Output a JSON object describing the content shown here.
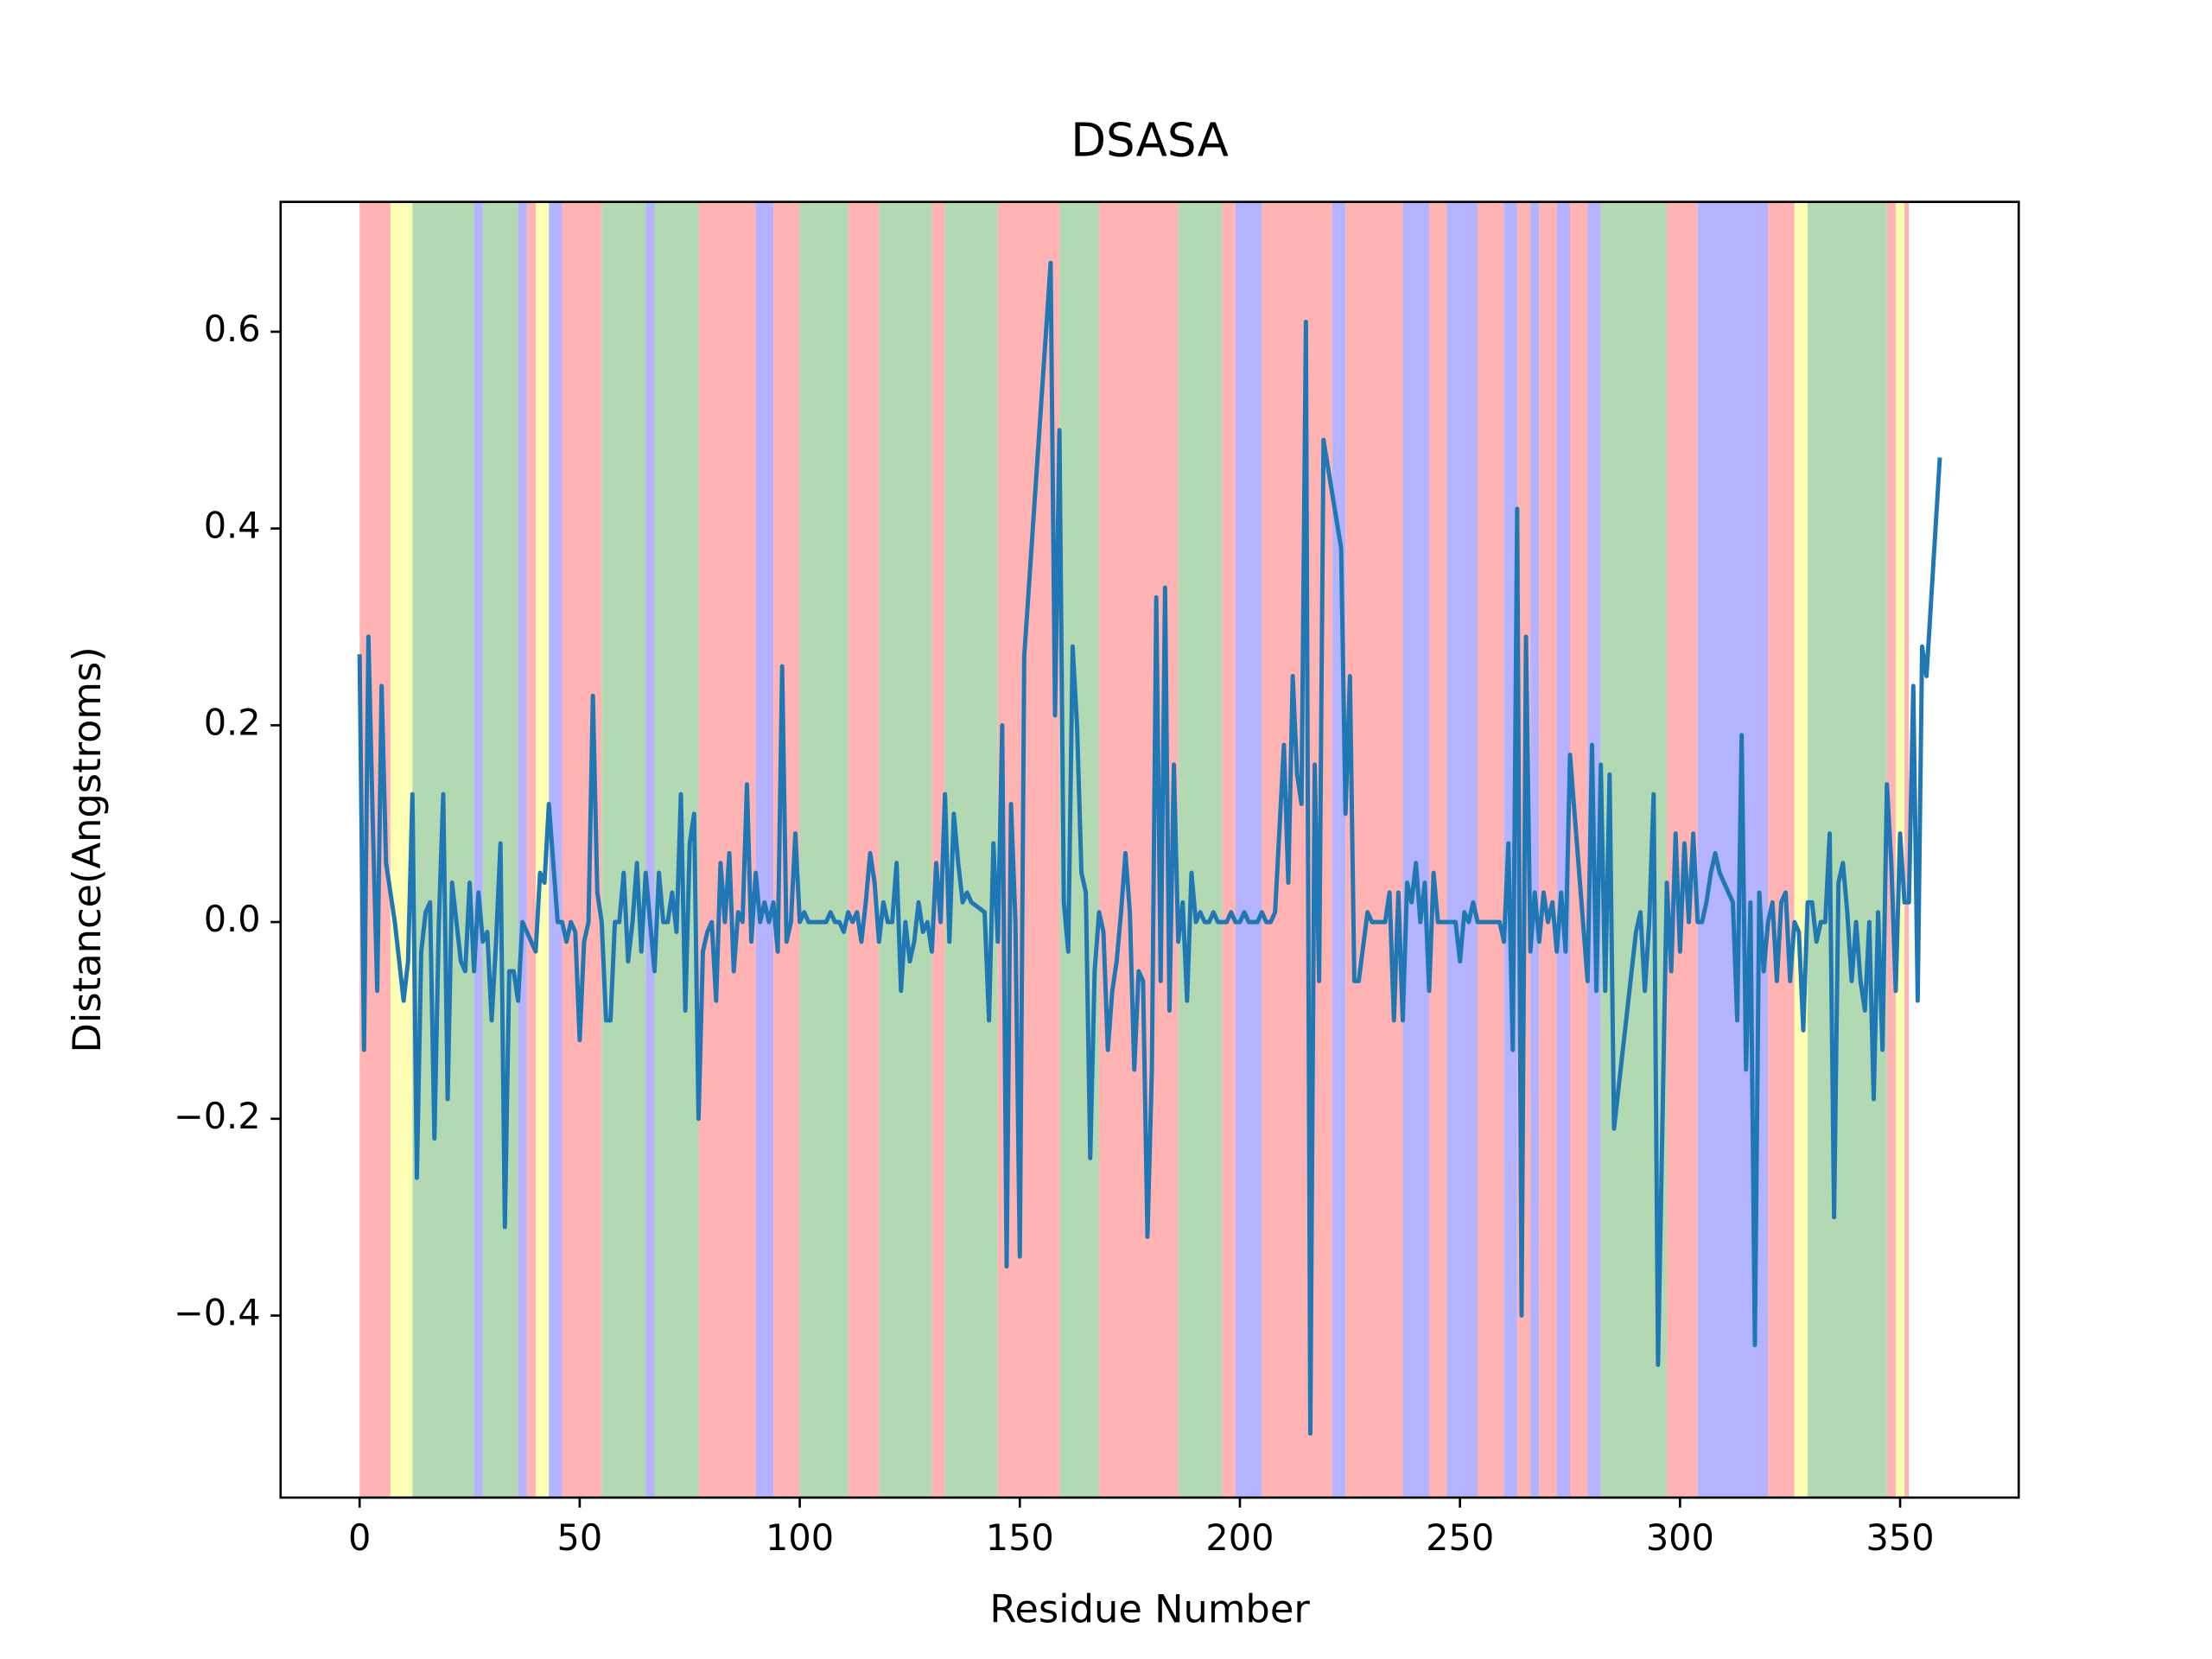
{
  "chart_data": {
    "type": "line",
    "title": "DSASA",
    "xlabel": "Residue Number",
    "ylabel": "Distance(Angstroms)",
    "color": "#1f77b4",
    "xlim": [
      -17.95,
      376.95
    ],
    "xticks": [
      0,
      50,
      100,
      150,
      200,
      250,
      300,
      350
    ],
    "ylim": [
      -0.585,
      0.732
    ],
    "yticks": [
      {
        "value": -0.4,
        "label": "−0.4"
      },
      {
        "value": -0.2,
        "label": "−0.2"
      },
      {
        "value": 0,
        "label": "0.0"
      },
      0.2,
      0.4,
      0.6
    ],
    "spans": [
      {
        "x": [
          0,
          7
        ],
        "color": "#ffb3b3"
      },
      {
        "x": [
          7,
          12
        ],
        "color": "#ffffb3"
      },
      {
        "x": [
          12,
          26
        ],
        "color": "#b3d9b3"
      },
      {
        "x": [
          26,
          28
        ],
        "color": "#b3b3ff"
      },
      {
        "x": [
          28,
          36
        ],
        "color": "#b3d9b3"
      },
      {
        "x": [
          36,
          38
        ],
        "color": "#b3b3ff"
      },
      {
        "x": [
          38,
          40
        ],
        "color": "#ffb3b3"
      },
      {
        "x": [
          40,
          43
        ],
        "color": "#ffffb3"
      },
      {
        "x": [
          43,
          46
        ],
        "color": "#b3b3ff"
      },
      {
        "x": [
          46,
          55
        ],
        "color": "#ffb3b3"
      },
      {
        "x": [
          55,
          65
        ],
        "color": "#b3d9b3"
      },
      {
        "x": [
          65,
          67
        ],
        "color": "#b3b3ff"
      },
      {
        "x": [
          67,
          77
        ],
        "color": "#b3d9b3"
      },
      {
        "x": [
          77,
          90
        ],
        "color": "#ffb3b3"
      },
      {
        "x": [
          90,
          94
        ],
        "color": "#b3b3ff"
      },
      {
        "x": [
          94,
          100
        ],
        "color": "#ffb3b3"
      },
      {
        "x": [
          100,
          111
        ],
        "color": "#b3d9b3"
      },
      {
        "x": [
          111,
          118
        ],
        "color": "#ffb3b3"
      },
      {
        "x": [
          118,
          130
        ],
        "color": "#b3d9b3"
      },
      {
        "x": [
          130,
          133
        ],
        "color": "#ffb3b3"
      },
      {
        "x": [
          133,
          145
        ],
        "color": "#b3d9b3"
      },
      {
        "x": [
          145,
          159
        ],
        "color": "#ffb3b3"
      },
      {
        "x": [
          159,
          168
        ],
        "color": "#b3d9b3"
      },
      {
        "x": [
          168,
          186
        ],
        "color": "#ffb3b3"
      },
      {
        "x": [
          186,
          196
        ],
        "color": "#b3d9b3"
      },
      {
        "x": [
          196,
          199
        ],
        "color": "#ffb3b3"
      },
      {
        "x": [
          199,
          205
        ],
        "color": "#b3b3ff"
      },
      {
        "x": [
          205,
          221
        ],
        "color": "#ffb3b3"
      },
      {
        "x": [
          221,
          224
        ],
        "color": "#b3b3ff"
      },
      {
        "x": [
          224,
          237
        ],
        "color": "#ffb3b3"
      },
      {
        "x": [
          237,
          243
        ],
        "color": "#b3b3ff"
      },
      {
        "x": [
          243,
          247
        ],
        "color": "#ffb3b3"
      },
      {
        "x": [
          247,
          254
        ],
        "color": "#b3b3ff"
      },
      {
        "x": [
          254,
          260
        ],
        "color": "#ffb3b3"
      },
      {
        "x": [
          260,
          263
        ],
        "color": "#b3b3ff"
      },
      {
        "x": [
          263,
          266
        ],
        "color": "#ffb3b3"
      },
      {
        "x": [
          266,
          268
        ],
        "color": "#b3b3ff"
      },
      {
        "x": [
          268,
          272
        ],
        "color": "#ffb3b3"
      },
      {
        "x": [
          272,
          275
        ],
        "color": "#b3b3ff"
      },
      {
        "x": [
          275,
          279
        ],
        "color": "#ffb3b3"
      },
      {
        "x": [
          279,
          282
        ],
        "color": "#b3b3ff"
      },
      {
        "x": [
          282,
          297
        ],
        "color": "#b3d9b3"
      },
      {
        "x": [
          297,
          304
        ],
        "color": "#ffb3b3"
      },
      {
        "x": [
          304,
          320
        ],
        "color": "#b3b3ff"
      },
      {
        "x": [
          320,
          326
        ],
        "color": "#ffb3b3"
      },
      {
        "x": [
          326,
          329
        ],
        "color": "#ffffb3"
      },
      {
        "x": [
          329,
          347
        ],
        "color": "#b3d9b3"
      },
      {
        "x": [
          347,
          349
        ],
        "color": "#ffb3b3"
      },
      {
        "x": [
          349,
          351
        ],
        "color": "#ffffb3"
      },
      {
        "x": [
          351,
          352
        ],
        "color": "#ffb3b3"
      }
    ],
    "x": [
      0,
      1,
      2,
      3,
      4,
      5,
      6,
      7,
      8,
      9,
      10,
      11,
      12,
      13,
      14,
      15,
      16,
      17,
      18,
      19,
      20,
      21,
      22,
      23,
      24,
      25,
      26,
      27,
      28,
      29,
      30,
      31,
      32,
      33,
      34,
      35,
      36,
      37,
      38,
      39,
      40,
      41,
      42,
      43,
      44,
      45,
      46,
      47,
      48,
      49,
      50,
      51,
      52,
      53,
      54,
      55,
      56,
      57,
      58,
      59,
      60,
      61,
      62,
      63,
      64,
      65,
      66,
      67,
      68,
      69,
      70,
      71,
      72,
      73,
      74,
      75,
      76,
      77,
      78,
      79,
      80,
      81,
      82,
      83,
      84,
      85,
      86,
      87,
      88,
      89,
      90,
      91,
      92,
      93,
      94,
      95,
      96,
      97,
      98,
      99,
      100,
      101,
      102,
      103,
      104,
      105,
      106,
      107,
      108,
      109,
      110,
      111,
      112,
      113,
      114,
      115,
      116,
      117,
      118,
      119,
      120,
      121,
      122,
      123,
      124,
      125,
      126,
      127,
      128,
      129,
      130,
      131,
      132,
      133,
      134,
      135,
      136,
      137,
      138,
      139,
      142,
      143,
      144,
      145,
      146,
      147,
      148,
      149,
      150,
      151,
      157,
      158,
      159,
      160,
      161,
      162,
      163,
      164,
      165,
      166,
      167,
      168,
      169,
      170,
      171,
      172,
      173,
      174,
      175,
      176,
      177,
      178,
      179,
      180,
      181,
      182,
      183,
      184,
      185,
      186,
      187,
      188,
      189,
      190,
      191,
      192,
      193,
      194,
      195,
      196,
      197,
      198,
      199,
      200,
      201,
      202,
      203,
      204,
      205,
      206,
      207,
      208,
      210,
      211,
      212,
      213,
      214,
      215,
      216,
      217,
      218,
      219,
      223,
      224,
      225,
      226,
      227,
      229,
      230,
      231,
      232,
      233,
      234,
      235,
      236,
      237,
      238,
      239,
      240,
      241,
      242,
      243,
      244,
      245,
      246,
      247,
      248,
      249,
      250,
      251,
      252,
      253,
      254,
      255,
      256,
      257,
      258,
      259,
      260,
      261,
      262,
      263,
      264,
      265,
      266,
      267,
      268,
      269,
      270,
      271,
      272,
      273,
      274,
      275,
      279,
      280,
      281,
      282,
      283,
      284,
      285,
      290,
      291,
      292,
      293,
      294,
      295,
      297,
      298,
      299,
      300,
      301,
      302,
      303,
      304,
      305,
      306,
      307,
      308,
      309,
      312,
      313,
      314,
      315,
      316,
      317,
      318,
      319,
      320,
      321,
      322,
      323,
      324,
      325,
      326,
      327,
      328,
      329,
      330,
      331,
      332,
      333,
      334,
      335,
      336,
      337,
      338,
      339,
      340,
      341,
      342,
      343,
      344,
      345,
      346,
      347,
      348,
      349,
      350,
      351,
      352,
      353,
      354,
      355,
      356,
      359
    ],
    "values": [
      0.27,
      -0.13,
      0.29,
      0.1,
      -0.07,
      0.24,
      0.06,
      0.03,
      0.0,
      -0.04,
      -0.08,
      -0.04,
      0.13,
      -0.26,
      -0.03,
      0.01,
      0.02,
      -0.22,
      0.0,
      0.13,
      -0.18,
      0.04,
      0.0,
      -0.04,
      -0.05,
      0.04,
      -0.05,
      0.03,
      -0.02,
      -0.01,
      -0.1,
      -0.02,
      0.08,
      -0.31,
      -0.05,
      -0.05,
      -0.08,
      0.0,
      -0.01,
      -0.02,
      -0.03,
      0.05,
      0.04,
      0.12,
      0.06,
      0.0,
      0.0,
      -0.02,
      0.0,
      -0.01,
      -0.12,
      -0.02,
      0.0,
      0.23,
      0.03,
      0.0,
      -0.1,
      -0.1,
      0.0,
      0.0,
      0.05,
      -0.04,
      0.0,
      0.06,
      -0.03,
      0.05,
      0.0,
      -0.05,
      0.05,
      0.0,
      0.0,
      0.03,
      -0.01,
      0.13,
      -0.09,
      0.08,
      0.11,
      -0.2,
      -0.03,
      -0.01,
      0.0,
      -0.08,
      0.06,
      0.0,
      0.07,
      -0.05,
      0.01,
      0.0,
      0.14,
      -0.02,
      0.05,
      0.0,
      0.02,
      0.0,
      0.02,
      -0.03,
      0.26,
      -0.02,
      0.0,
      0.09,
      0.0,
      0.01,
      0.0,
      0.0,
      0.0,
      0.0,
      0.0,
      0.01,
      0.0,
      0.0,
      -0.01,
      0.01,
      0.0,
      0.01,
      -0.02,
      0.02,
      0.07,
      0.04,
      -0.02,
      0.02,
      0.0,
      0.0,
      0.06,
      -0.07,
      0.0,
      -0.04,
      -0.02,
      0.02,
      -0.01,
      0.0,
      -0.03,
      0.06,
      0.0,
      0.13,
      -0.02,
      0.11,
      0.06,
      0.02,
      0.03,
      0.02,
      0.01,
      -0.1,
      0.08,
      -0.02,
      0.2,
      -0.35,
      0.12,
      0.0,
      -0.34,
      0.27,
      0.67,
      0.21,
      0.5,
      0.02,
      -0.03,
      0.28,
      0.2,
      0.05,
      0.03,
      -0.24,
      -0.05,
      0.01,
      -0.01,
      -0.13,
      -0.07,
      -0.04,
      0.01,
      0.07,
      0.01,
      -0.15,
      -0.05,
      -0.06,
      -0.32,
      -0.15,
      0.33,
      -0.06,
      0.34,
      -0.09,
      0.16,
      -0.02,
      0.02,
      -0.08,
      0.05,
      0.0,
      0.01,
      0.0,
      0.0,
      0.01,
      0.0,
      0.0,
      0.0,
      0.01,
      0.0,
      0.0,
      0.01,
      0.0,
      0.0,
      0.0,
      0.01,
      0.0,
      0.0,
      0.01,
      0.18,
      0.04,
      0.25,
      0.15,
      0.12,
      0.61,
      -0.52,
      0.16,
      -0.06,
      0.49,
      0.38,
      0.11,
      0.25,
      -0.06,
      -0.06,
      0.01,
      0.0,
      0.0,
      0.0,
      0.0,
      0.03,
      -0.1,
      0.03,
      -0.1,
      0.04,
      0.02,
      0.06,
      0.0,
      0.04,
      -0.07,
      0.05,
      0.0,
      0.0,
      0.0,
      0.0,
      0.0,
      -0.04,
      0.01,
      0.0,
      0.02,
      0.0,
      0.0,
      0.0,
      0.0,
      0.0,
      0.0,
      -0.02,
      0.08,
      -0.13,
      0.42,
      -0.4,
      0.29,
      -0.03,
      0.03,
      -0.02,
      0.03,
      0.0,
      0.02,
      -0.03,
      0.03,
      -0.03,
      0.17,
      -0.06,
      0.18,
      -0.07,
      0.16,
      -0.07,
      0.15,
      -0.21,
      -0.01,
      0.01,
      -0.07,
      0.0,
      0.13,
      -0.45,
      0.04,
      -0.05,
      0.09,
      -0.03,
      0.08,
      0.0,
      0.09,
      0.0,
      0.0,
      0.02,
      0.05,
      0.07,
      0.05,
      0.02,
      -0.1,
      0.19,
      -0.15,
      0.02,
      -0.43,
      0.03,
      -0.05,
      0.0,
      0.02,
      -0.06,
      0.02,
      0.03,
      -0.06,
      0.0,
      -0.01,
      -0.11,
      0.02,
      0.02,
      -0.02,
      0.0,
      0.0,
      0.09,
      -0.3,
      0.04,
      0.06,
      0.01,
      -0.06,
      0.0,
      -0.06,
      -0.09,
      0.0,
      -0.18,
      0.01,
      -0.13,
      0.14,
      0.06,
      -0.07,
      0.09,
      0.02,
      0.02,
      0.24,
      -0.08,
      0.28,
      0.25,
      0.47
    ]
  }
}
